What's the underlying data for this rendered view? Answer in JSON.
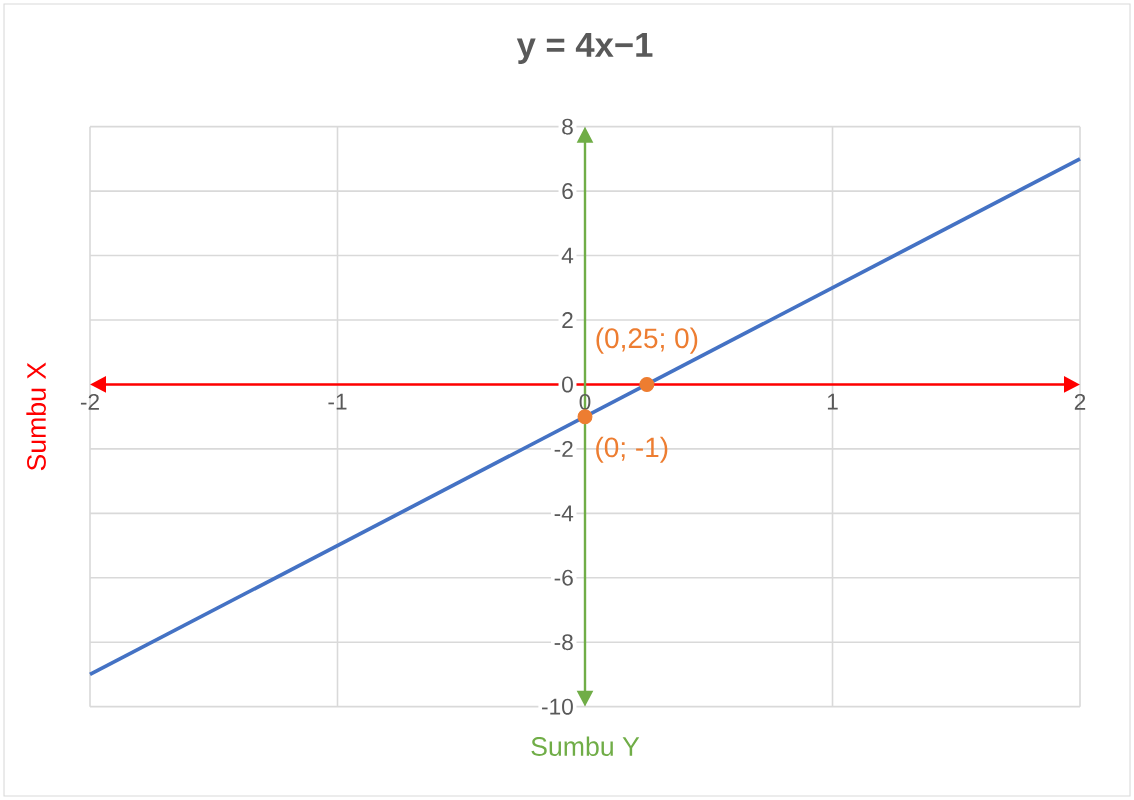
{
  "chart_data": {
    "type": "line",
    "title": "y = 4x−1",
    "xlabel": "Sumbu Y",
    "ylabel": "Sumbu X",
    "series": [
      {
        "color": "#4472c4",
        "x": [
          -2,
          2
        ],
        "values": [
          -9,
          7
        ]
      },
      {
        "type": "scatter",
        "color": "#ed7d31",
        "x": [
          0,
          0.25
        ],
        "values": [
          -1,
          0
        ]
      }
    ],
    "annotations": [
      {
        "text": "(0,25; 0)",
        "x": 0.25,
        "y": 0
      },
      {
        "text": "(0; -1)",
        "x": 0,
        "y": -1
      }
    ],
    "xlim": [
      -2,
      2
    ],
    "ylim": [
      -10,
      8
    ],
    "xticks": [
      -2,
      -1,
      0,
      1,
      2
    ],
    "yticks": [
      -10,
      -8,
      -6,
      -4,
      -2,
      0,
      2,
      4,
      6,
      8
    ],
    "grid": true,
    "line_style": "solid"
  }
}
